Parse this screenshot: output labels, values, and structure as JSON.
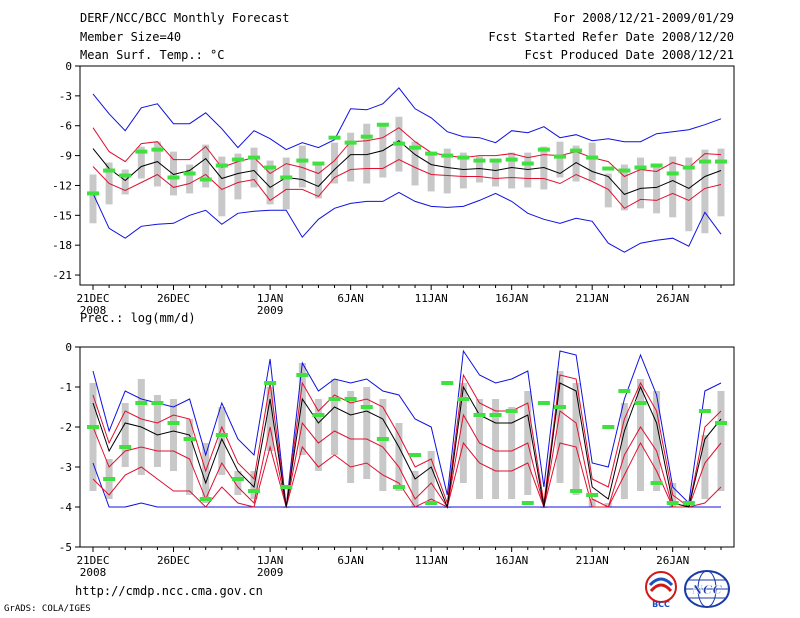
{
  "header": {
    "title": "DERF/NCC/BCC Monthly Forecast",
    "member_size": "Member Size=40",
    "variable1": "Mean Surf. Temp.: °C",
    "period": "For 2008/12/21-2009/01/29",
    "fcst_started": "Fcst Started Refer Date 2008/12/20",
    "fcst_produced": "Fcst Produced Date 2008/12/21"
  },
  "panel2_label": "Prec.: log(mm/d)",
  "footer": {
    "url": "http://cmdp.ncc.cma.gov.cn",
    "credit": "GrADS: COLA/IGES"
  },
  "logos": {
    "left": "BCC",
    "right": "NCC"
  },
  "colors": {
    "ensemble_mean": "#000000",
    "spread_band": "#e01030",
    "extremes": "#1010e0",
    "interquartile_box": "#c8c8c8",
    "climatology_marker": "#40e040"
  },
  "chart_data": [
    {
      "type": "line",
      "title": "Mean Surf. Temp.: °C",
      "x": [
        1,
        2,
        3,
        4,
        5,
        6,
        7,
        8,
        9,
        10,
        11,
        12,
        13,
        14,
        15,
        16,
        17,
        18,
        19,
        20,
        21,
        22,
        23,
        24,
        25,
        26,
        27,
        28,
        29,
        30,
        31,
        32,
        33,
        34,
        35,
        36,
        37,
        38,
        39,
        40
      ],
      "xticks": [
        {
          "day": 1,
          "label": "21DEC",
          "sub": "2008"
        },
        {
          "day": 6,
          "label": "26DEC",
          "sub": ""
        },
        {
          "day": 12,
          "label": "1JAN",
          "sub": "2009"
        },
        {
          "day": 17,
          "label": "6JAN",
          "sub": ""
        },
        {
          "day": 22,
          "label": "11JAN",
          "sub": ""
        },
        {
          "day": 27,
          "label": "16JAN",
          "sub": ""
        },
        {
          "day": 32,
          "label": "21JAN",
          "sub": ""
        },
        {
          "day": 37,
          "label": "26JAN",
          "sub": ""
        }
      ],
      "yticks": [
        0,
        -3,
        -6,
        -9,
        -12,
        -15,
        -18,
        -21
      ],
      "ylim": [
        -22,
        0
      ],
      "series": [
        {
          "name": "max",
          "values": [
            -2.8,
            -4.8,
            -6.5,
            -4.2,
            -3.8,
            -5.8,
            -5.8,
            -4.7,
            -6.3,
            -8.2,
            -6.5,
            -7.3,
            -8.4,
            -7.7,
            -8.2,
            -7.4,
            -4.3,
            -4.4,
            -3.8,
            -2.2,
            -4.3,
            -5.2,
            -6.6,
            -7.1,
            -7.2,
            -7.7,
            -6.5,
            -6.7,
            -6.1,
            -7.2,
            -6.9,
            -7.5,
            -7.3,
            -7.6,
            -7.6,
            -6.8,
            -6.6,
            -6.4,
            -5.9,
            -5.3
          ]
        },
        {
          "name": "upper",
          "values": [
            -6.2,
            -8.6,
            -9.6,
            -7.8,
            -7.6,
            -9.4,
            -9.4,
            -8.1,
            -10.2,
            -9.6,
            -9.2,
            -10.8,
            -9.8,
            -10.2,
            -10.8,
            -9.5,
            -7.6,
            -7.5,
            -7.2,
            -6.2,
            -7.6,
            -8.7,
            -9.0,
            -9.2,
            -9.0,
            -9.0,
            -8.8,
            -9.2,
            -8.9,
            -9.0,
            -8.6,
            -9.2,
            -9.6,
            -11.1,
            -10.4,
            -10.6,
            -9.7,
            -10.2,
            -8.8,
            -8.9
          ]
        },
        {
          "name": "mean",
          "values": [
            -8.3,
            -10.3,
            -11.5,
            -10.1,
            -9.6,
            -10.9,
            -10.5,
            -9.3,
            -11.3,
            -10.8,
            -10.5,
            -12.2,
            -11.2,
            -11.4,
            -12.1,
            -10.4,
            -8.9,
            -8.9,
            -8.5,
            -7.5,
            -8.9,
            -9.9,
            -10.2,
            -10.4,
            -10.3,
            -10.5,
            -10.2,
            -10.4,
            -10.2,
            -10.8,
            -9.7,
            -10.6,
            -11.1,
            -12.9,
            -12.3,
            -12.2,
            -11.5,
            -12.3,
            -11.1,
            -10.5
          ]
        },
        {
          "name": "lower",
          "values": [
            -10.1,
            -11.8,
            -12.5,
            -11.7,
            -10.9,
            -12.2,
            -11.8,
            -10.9,
            -12.4,
            -11.7,
            -11.4,
            -13.5,
            -12.4,
            -12.4,
            -13.1,
            -11.2,
            -10.4,
            -10.3,
            -10.3,
            -9.4,
            -10.2,
            -10.9,
            -11.0,
            -11.1,
            -11.1,
            -11.3,
            -11.2,
            -11.3,
            -11.3,
            -11.8,
            -10.9,
            -11.6,
            -12.4,
            -14.3,
            -13.4,
            -13.5,
            -12.8,
            -13.5,
            -12.3,
            -11.9
          ]
        },
        {
          "name": "min",
          "values": [
            -12.8,
            -16.3,
            -17.3,
            -16.1,
            -15.9,
            -15.8,
            -15.0,
            -14.5,
            -15.9,
            -14.8,
            -14.6,
            -14.5,
            -14.5,
            -17.2,
            -15.4,
            -14.3,
            -13.8,
            -13.6,
            -13.6,
            -12.7,
            -13.6,
            -14.1,
            -14.2,
            -14.1,
            -13.5,
            -12.8,
            -13.6,
            -14.8,
            -15.4,
            -15.8,
            -15.3,
            -15.6,
            -17.8,
            -18.7,
            -17.8,
            -17.5,
            -17.3,
            -18.1,
            -14.7,
            -16.9
          ]
        },
        {
          "name": "box_high",
          "values": [
            -10.9,
            -9.7,
            -10.4,
            -8.1,
            -7.6,
            -8.6,
            -9.9,
            -7.9,
            -9.1,
            -8.8,
            -8.2,
            -9.5,
            -9.2,
            -8.0,
            -9.8,
            -7.7,
            -6.7,
            -5.8,
            -5.9,
            -5.1,
            -7.6,
            -8.8,
            -8.3,
            -8.7,
            -9.1,
            -9.3,
            -8.7,
            -8.7,
            -8.1,
            -7.6,
            -8.0,
            -7.7,
            -10.8,
            -9.9,
            -9.2,
            -9.8,
            -9.1,
            -9.2,
            -8.4,
            -8.3
          ]
        },
        {
          "name": "box_low",
          "values": [
            -15.8,
            -13.9,
            -12.9,
            -11.3,
            -12.1,
            -13.0,
            -12.8,
            -12.2,
            -15.1,
            -13.4,
            -12.2,
            -13.9,
            -14.4,
            -12.2,
            -13.3,
            -11.8,
            -11.6,
            -11.8,
            -11.2,
            -10.6,
            -12.0,
            -12.6,
            -12.8,
            -12.3,
            -11.7,
            -12.1,
            -12.3,
            -12.2,
            -12.4,
            -11.2,
            -11.6,
            -11.5,
            -14.2,
            -14.5,
            -14.3,
            -14.8,
            -15.2,
            -16.6,
            -16.8,
            -15.1
          ]
        },
        {
          "name": "climatology",
          "values": [
            -12.8,
            -10.5,
            -11.0,
            -8.6,
            -8.4,
            -11.2,
            -10.8,
            -11.4,
            -10.0,
            -9.4,
            -9.2,
            -10.2,
            -11.2,
            -9.5,
            -9.8,
            -7.2,
            -7.7,
            -7.1,
            -5.9,
            -7.8,
            -8.2,
            -8.8,
            -9.0,
            -9.2,
            -9.5,
            -9.5,
            -9.4,
            -9.8,
            -8.4,
            -9.1,
            -8.5,
            -9.2,
            -10.3,
            -10.5,
            -10.2,
            -10.0,
            -10.8,
            -10.2,
            -9.6,
            -9.6
          ]
        }
      ]
    },
    {
      "type": "line",
      "title": "Prec.: log(mm/d)",
      "x": [
        1,
        2,
        3,
        4,
        5,
        6,
        7,
        8,
        9,
        10,
        11,
        12,
        13,
        14,
        15,
        16,
        17,
        18,
        19,
        20,
        21,
        22,
        23,
        24,
        25,
        26,
        27,
        28,
        29,
        30,
        31,
        32,
        33,
        34,
        35,
        36,
        37,
        38,
        39,
        40
      ],
      "xticks": [
        {
          "day": 1,
          "label": "21DEC",
          "sub": "2008"
        },
        {
          "day": 6,
          "label": "26DEC",
          "sub": ""
        },
        {
          "day": 12,
          "label": "1JAN",
          "sub": "2009"
        },
        {
          "day": 17,
          "label": "6JAN",
          "sub": ""
        },
        {
          "day": 22,
          "label": "11JAN",
          "sub": ""
        },
        {
          "day": 27,
          "label": "16JAN",
          "sub": ""
        },
        {
          "day": 32,
          "label": "21JAN",
          "sub": ""
        },
        {
          "day": 37,
          "label": "26JAN",
          "sub": ""
        }
      ],
      "yticks": [
        0,
        -1,
        -2,
        -3,
        -4,
        -5
      ],
      "ylim": [
        -5,
        0
      ],
      "series": [
        {
          "name": "max",
          "values": [
            -0.6,
            -2.1,
            -1.1,
            -1.3,
            -1.4,
            -1.5,
            -1.3,
            -2.7,
            -1.4,
            -2.3,
            -2.7,
            -0.3,
            -4.0,
            -0.4,
            -1.1,
            -0.8,
            -0.9,
            -0.8,
            -1.1,
            -1.2,
            -1.8,
            -2.0,
            -3.7,
            -0.1,
            -0.7,
            -0.9,
            -0.8,
            -0.6,
            -3.5,
            -0.1,
            -0.2,
            -2.9,
            -3.0,
            -1.3,
            -0.2,
            -1.2,
            -3.5,
            -3.9,
            -1.1,
            -0.9
          ]
        },
        {
          "name": "upper",
          "values": [
            -1.2,
            -2.4,
            -1.6,
            -1.8,
            -1.9,
            -1.7,
            -1.8,
            -3.1,
            -2.0,
            -2.9,
            -3.3,
            -0.9,
            -4.0,
            -0.9,
            -1.6,
            -1.2,
            -1.4,
            -1.3,
            -1.5,
            -2.2,
            -3.0,
            -2.8,
            -3.9,
            -0.7,
            -1.4,
            -1.6,
            -1.6,
            -1.4,
            -3.9,
            -0.7,
            -0.8,
            -3.3,
            -3.5,
            -1.8,
            -0.9,
            -1.6,
            -3.7,
            -4.0,
            -2.0,
            -1.6
          ]
        },
        {
          "name": "mean",
          "values": [
            -1.4,
            -2.6,
            -1.9,
            -2.0,
            -2.2,
            -2.1,
            -2.2,
            -3.4,
            -2.3,
            -3.1,
            -3.5,
            -1.3,
            -4.0,
            -1.3,
            -1.9,
            -1.5,
            -1.7,
            -1.6,
            -1.8,
            -2.5,
            -3.3,
            -3.0,
            -4.0,
            -1.0,
            -1.7,
            -1.9,
            -1.9,
            -1.7,
            -4.0,
            -0.9,
            -1.1,
            -3.5,
            -3.8,
            -2.1,
            -1.0,
            -1.9,
            -3.9,
            -4.0,
            -2.3,
            -1.8
          ]
        },
        {
          "name": "lower",
          "values": [
            -2.0,
            -3.0,
            -2.6,
            -2.5,
            -2.6,
            -2.6,
            -2.8,
            -3.8,
            -2.9,
            -3.5,
            -3.9,
            -2.0,
            -4.0,
            -1.9,
            -2.4,
            -2.1,
            -2.3,
            -2.3,
            -2.5,
            -3.0,
            -3.8,
            -3.4,
            -4.0,
            -1.7,
            -2.4,
            -2.6,
            -2.6,
            -2.4,
            -4.0,
            -1.6,
            -1.9,
            -3.8,
            -4.0,
            -2.7,
            -2.0,
            -2.6,
            -4.0,
            -4.0,
            -2.9,
            -2.4
          ]
        },
        {
          "name": "lowest",
          "values": [
            -3.3,
            -3.7,
            -3.2,
            -3.0,
            -3.3,
            -3.6,
            -3.6,
            -4.0,
            -3.5,
            -3.9,
            -4.0,
            -2.5,
            -4.0,
            -2.5,
            -3.0,
            -2.7,
            -3.0,
            -2.9,
            -3.2,
            -3.4,
            -4.0,
            -3.8,
            -4.0,
            -2.4,
            -2.9,
            -3.1,
            -3.1,
            -2.9,
            -4.0,
            -2.4,
            -2.5,
            -4.0,
            -4.0,
            -3.2,
            -2.4,
            -3.1,
            -4.0,
            -4.0,
            -3.9,
            -3.5
          ]
        },
        {
          "name": "min",
          "values": [
            -2.9,
            -4.0,
            -4.0,
            -3.9,
            -4.0,
            -4.0,
            -4.0,
            -4.0,
            -4.0,
            -4.0,
            -4.0,
            -4.0,
            -4.0,
            -4.0,
            -4.0,
            -4.0,
            -4.0,
            -4.0,
            -4.0,
            -4.0,
            -4.0,
            -4.0,
            -4.0,
            -4.0,
            -4.0,
            -4.0,
            -4.0,
            -4.0,
            -4.0,
            -4.0,
            -4.0,
            -4.0,
            -4.0,
            -4.0,
            -4.0,
            -4.0,
            -4.0,
            -4.0,
            -4.0,
            -4.0
          ]
        },
        {
          "name": "box_high",
          "values": [
            -0.9,
            -2.8,
            -1.4,
            -0.8,
            -1.2,
            -1.3,
            -1.8,
            -2.4,
            -1.5,
            -3.1,
            -3.1,
            -1.0,
            -4.0,
            -0.4,
            -1.3,
            -0.8,
            -1.1,
            -1.0,
            -1.3,
            -1.9,
            -3.1,
            -2.6,
            -4.0,
            -0.9,
            -1.3,
            -1.3,
            -1.5,
            -1.1,
            -4.0,
            -0.6,
            -0.9,
            -3.8,
            -3.9,
            -1.4,
            -0.8,
            -1.1,
            -3.4,
            -3.9,
            -2.2,
            -1.1
          ]
        },
        {
          "name": "box_low",
          "values": [
            -3.6,
            -3.8,
            -3.0,
            -3.2,
            -3.0,
            -3.1,
            -3.7,
            -3.9,
            -3.2,
            -3.7,
            -3.8,
            -2.6,
            -3.9,
            -2.7,
            -3.1,
            -2.7,
            -3.4,
            -3.3,
            -3.6,
            -3.6,
            -4.0,
            -3.9,
            -4.0,
            -3.4,
            -3.8,
            -3.8,
            -3.8,
            -3.7,
            -4.0,
            -3.4,
            -3.7,
            -4.0,
            -4.0,
            -3.8,
            -3.6,
            -3.6,
            -4.0,
            -4.0,
            -3.8,
            -3.6
          ]
        },
        {
          "name": "climatology",
          "values": [
            -2.0,
            -3.3,
            -2.5,
            -1.4,
            -1.4,
            -1.9,
            -2.3,
            -3.8,
            -2.2,
            -3.3,
            -3.6,
            -0.9,
            -3.5,
            -0.7,
            -1.7,
            -1.3,
            -1.3,
            -1.5,
            -2.3,
            -3.5,
            -2.7,
            -3.9,
            -0.9,
            -1.3,
            -1.7,
            -1.7,
            -1.6,
            -3.9,
            -1.4,
            -1.5,
            -3.6,
            -3.7,
            -2.0,
            -1.1,
            -1.4,
            -3.4,
            -3.9,
            -3.9,
            -1.6,
            -1.9
          ]
        }
      ]
    }
  ]
}
